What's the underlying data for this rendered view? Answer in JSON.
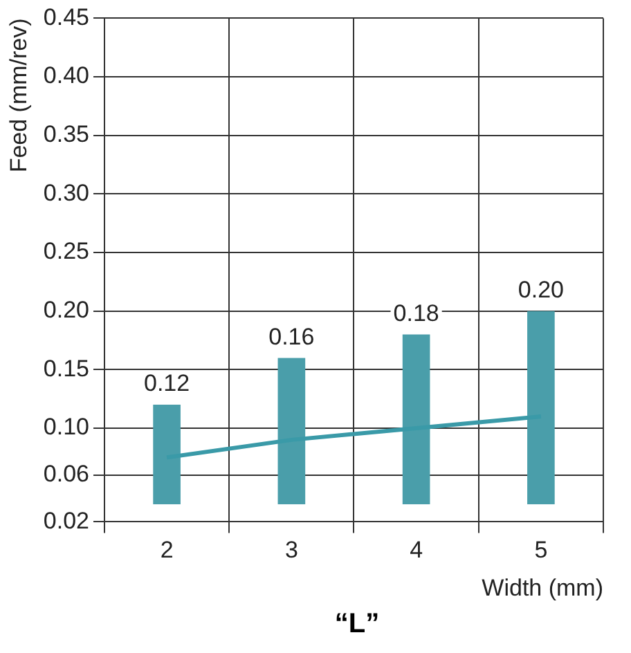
{
  "chart_data": {
    "type": "bar",
    "xlabel": "Width (mm)",
    "ylabel": "Feed (mm/rev)",
    "categories": [
      "2",
      "3",
      "4",
      "5"
    ],
    "series": [
      {
        "color": "#4a9eaa",
        "base": [
          0.035,
          0.035,
          0.035,
          0.035
        ],
        "values": [
          0.085,
          0.125,
          0.145,
          0.165
        ],
        "value_labels": [
          "0.12",
          "0.16",
          "0.18",
          "0.20"
        ]
      },
      {
        "type": "line",
        "color": "#3a9aa8",
        "values": [
          0.075,
          0.09,
          0.1,
          0.11
        ]
      }
    ],
    "ylim": [
      0.02,
      0.45
    ],
    "yticks": [
      {
        "value": 0.02,
        "label": "0.02"
      },
      {
        "value": 0.06,
        "label": "0.06"
      },
      {
        "value": 0.1,
        "label": "0.10"
      },
      {
        "value": 0.15,
        "label": "0.15"
      },
      {
        "value": 0.2,
        "label": "0.20"
      },
      {
        "value": 0.25,
        "label": "0.25"
      },
      {
        "value": 0.3,
        "label": "0.30"
      },
      {
        "value": 0.35,
        "label": "0.35"
      },
      {
        "value": 0.4,
        "label": "0.40"
      },
      {
        "value": 0.45,
        "label": "0.45"
      }
    ],
    "grid": true,
    "legend": false,
    "marker": "none",
    "annotations": [
      "“L”"
    ]
  }
}
